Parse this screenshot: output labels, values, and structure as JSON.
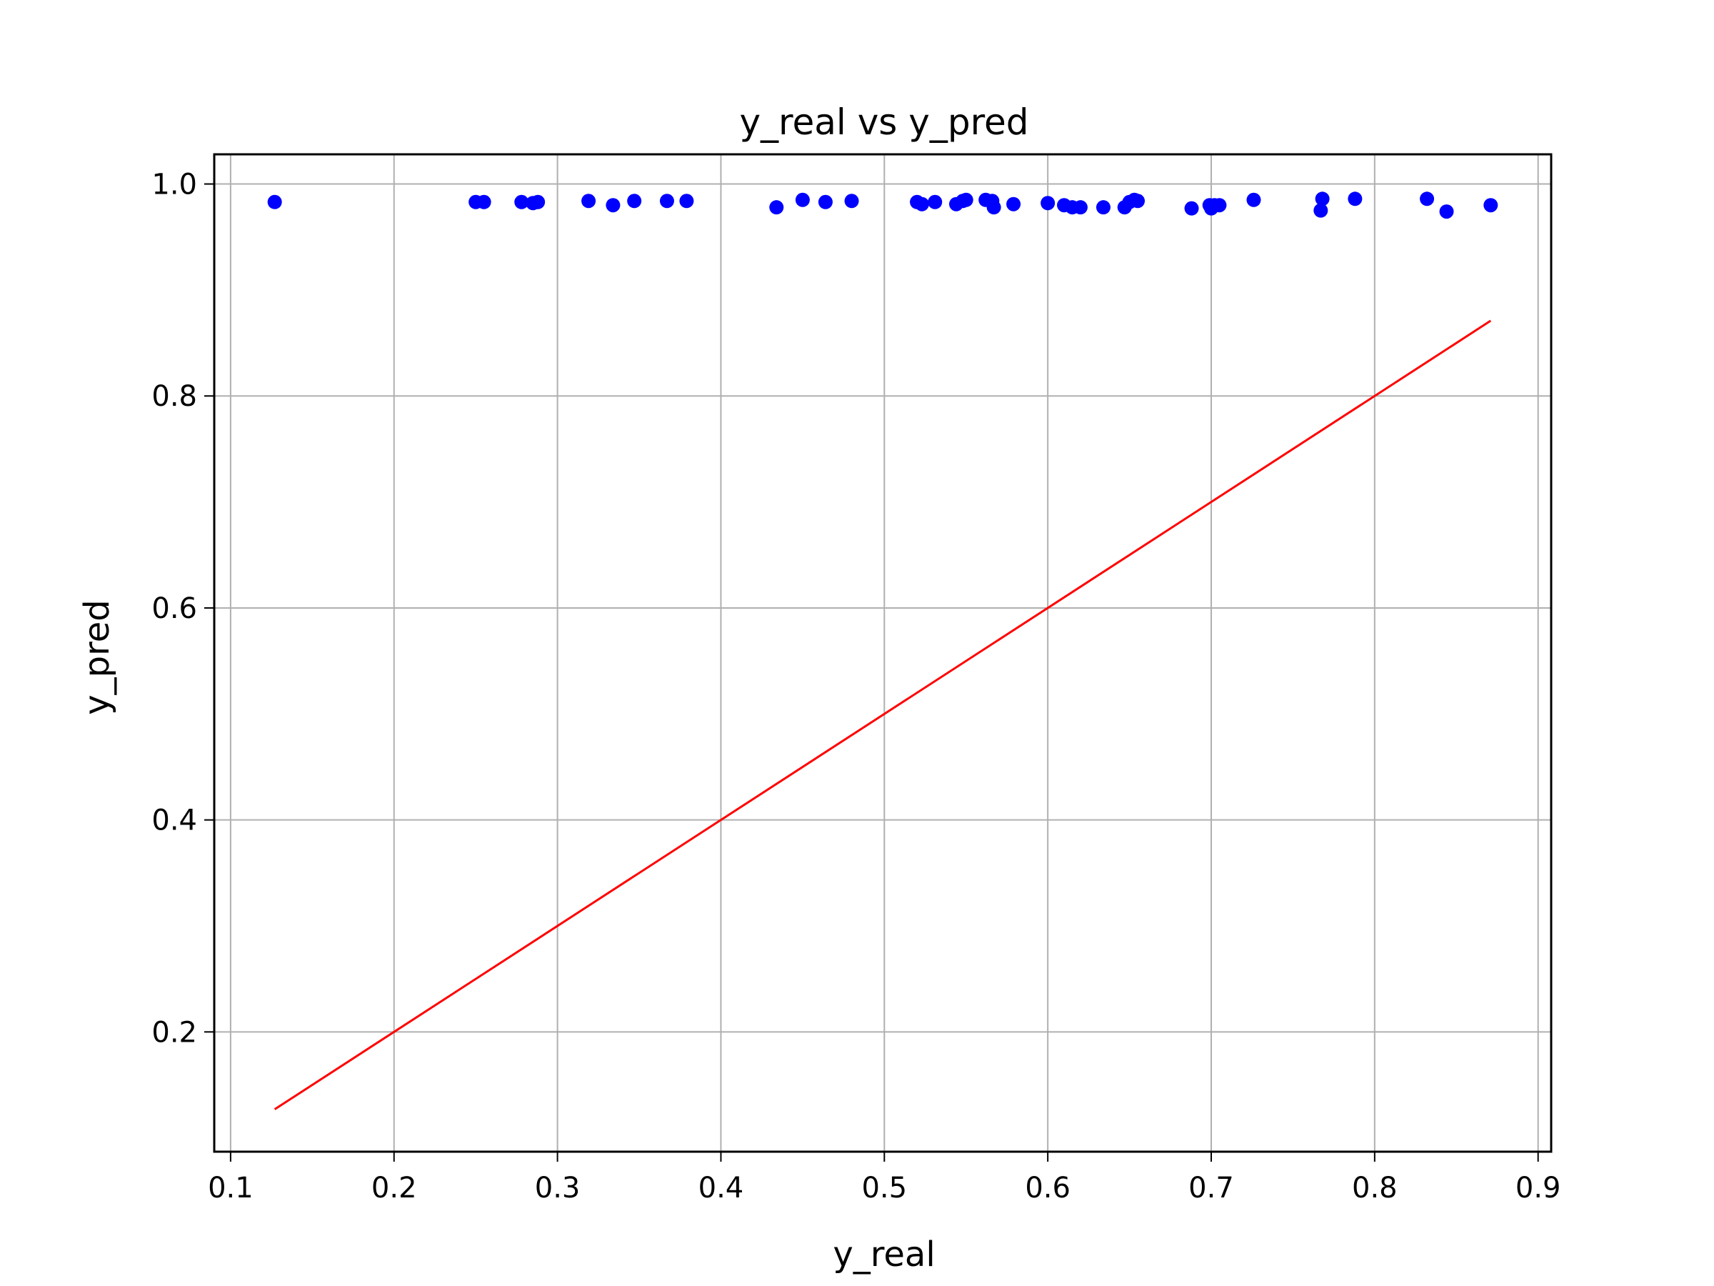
{
  "chart_data": {
    "type": "scatter",
    "title": "y_real vs y_pred",
    "xlabel": "y_real",
    "ylabel": "y_pred",
    "xlim": [
      0.09,
      0.908
    ],
    "ylim": [
      0.087,
      1.028
    ],
    "xticks": [
      0.1,
      0.2,
      0.3,
      0.4,
      0.5,
      0.6,
      0.7,
      0.8,
      0.9
    ],
    "xtick_labels": [
      "0.1",
      "0.2",
      "0.3",
      "0.4",
      "0.5",
      "0.6",
      "0.7",
      "0.8",
      "0.9"
    ],
    "yticks": [
      0.2,
      0.4,
      0.6,
      0.8,
      1.0
    ],
    "ytick_labels": [
      "0.2",
      "0.4",
      "0.6",
      "0.8",
      "1.0"
    ],
    "grid": true,
    "colors": {
      "points": "#0000ff",
      "line": "#ff0000",
      "grid": "#b0b0b0",
      "axes": "#000000"
    },
    "series": [
      {
        "kind": "scatter",
        "x": [
          0.127,
          0.25,
          0.255,
          0.278,
          0.285,
          0.288,
          0.319,
          0.334,
          0.347,
          0.367,
          0.379,
          0.434,
          0.45,
          0.464,
          0.48,
          0.52,
          0.523,
          0.531,
          0.544,
          0.548,
          0.55,
          0.562,
          0.566,
          0.567,
          0.579,
          0.6,
          0.61,
          0.615,
          0.62,
          0.634,
          0.647,
          0.65,
          0.653,
          0.655,
          0.688,
          0.699,
          0.7,
          0.702,
          0.705,
          0.726,
          0.767,
          0.768,
          0.788,
          0.832,
          0.844,
          0.871
        ],
        "y": [
          0.983,
          0.983,
          0.983,
          0.983,
          0.982,
          0.983,
          0.984,
          0.98,
          0.984,
          0.984,
          0.984,
          0.978,
          0.985,
          0.983,
          0.984,
          0.983,
          0.981,
          0.983,
          0.981,
          0.984,
          0.985,
          0.985,
          0.984,
          0.978,
          0.981,
          0.982,
          0.98,
          0.978,
          0.978,
          0.978,
          0.978,
          0.983,
          0.985,
          0.984,
          0.977,
          0.98,
          0.977,
          0.98,
          0.98,
          0.985,
          0.975,
          0.986,
          0.986,
          0.986,
          0.974,
          0.98
        ]
      },
      {
        "kind": "line",
        "x": [
          0.127,
          0.871
        ],
        "y": [
          0.127,
          0.871
        ]
      }
    ]
  }
}
